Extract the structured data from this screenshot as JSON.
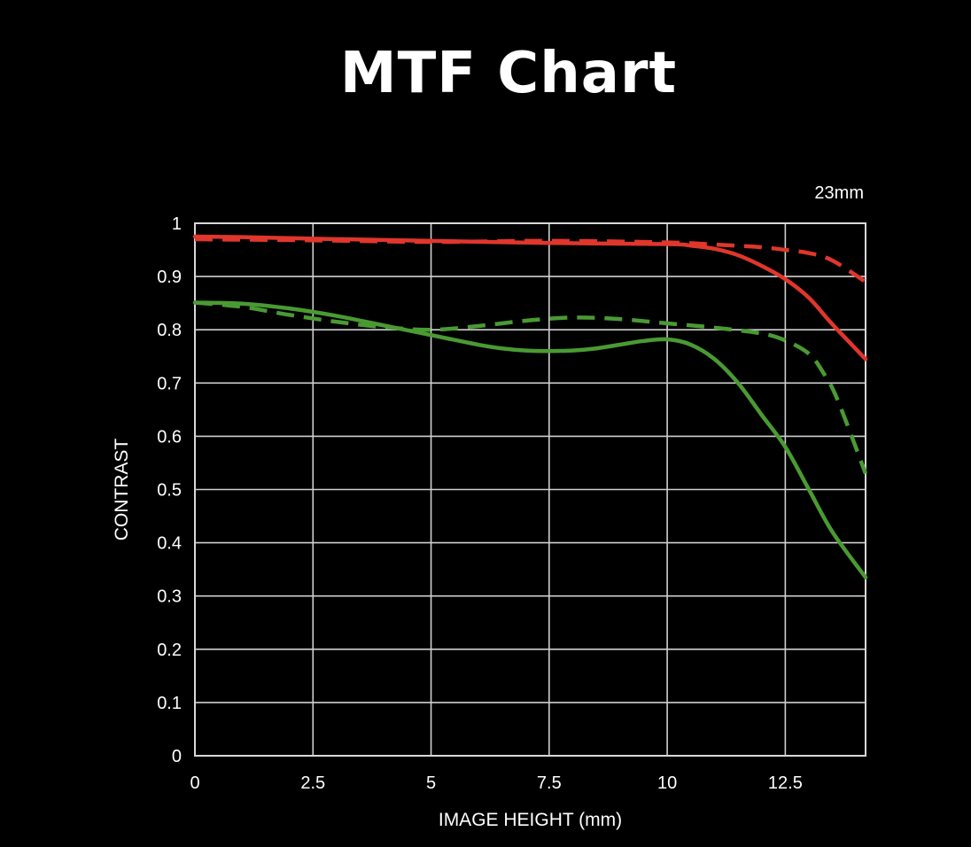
{
  "chart_data": {
    "type": "line",
    "title": "MTF Chart",
    "subtitle": "23mm",
    "xlabel": "IMAGE HEIGHT (mm)",
    "ylabel": "CONTRAST",
    "xlim": [
      0,
      14.2
    ],
    "ylim": [
      0,
      1
    ],
    "x_ticks": [
      0,
      2.5,
      5,
      7.5,
      10,
      12.5
    ],
    "x_tick_labels": [
      "0",
      "2.5",
      "5",
      "7.5",
      "10",
      "12.5"
    ],
    "y_ticks": [
      0,
      0.1,
      0.2,
      0.3,
      0.4,
      0.5,
      0.6,
      0.7,
      0.8,
      0.9,
      1
    ],
    "y_tick_labels": [
      "0",
      "0.1",
      "0.2",
      "0.3",
      "0.4",
      "0.5",
      "0.6",
      "0.7",
      "0.8",
      "0.9",
      "1"
    ],
    "grid": true,
    "series": [
      {
        "color": "#e0362c",
        "style": "solid",
        "points": [
          [
            0,
            0.975
          ],
          [
            1,
            0.974
          ],
          [
            2.5,
            0.971
          ],
          [
            5,
            0.967
          ],
          [
            7.5,
            0.963
          ],
          [
            10,
            0.961
          ],
          [
            10.5,
            0.958
          ],
          [
            11,
            0.952
          ],
          [
            11.5,
            0.94
          ],
          [
            12,
            0.92
          ],
          [
            12.5,
            0.895
          ],
          [
            13,
            0.86
          ],
          [
            13.5,
            0.81
          ],
          [
            14.2,
            0.745
          ]
        ]
      },
      {
        "color": "#e0362c",
        "style": "dashed",
        "points": [
          [
            0,
            0.97
          ],
          [
            2.5,
            0.968
          ],
          [
            5,
            0.965
          ],
          [
            7.5,
            0.967
          ],
          [
            10,
            0.964
          ],
          [
            11,
            0.96
          ],
          [
            12,
            0.955
          ],
          [
            12.5,
            0.95
          ],
          [
            13,
            0.944
          ],
          [
            13.5,
            0.93
          ],
          [
            14.2,
            0.89
          ]
        ]
      },
      {
        "color": "#4a9a33",
        "style": "solid",
        "points": [
          [
            0,
            0.851
          ],
          [
            1,
            0.849
          ],
          [
            2,
            0.84
          ],
          [
            3,
            0.826
          ],
          [
            4,
            0.808
          ],
          [
            5,
            0.79
          ],
          [
            6,
            0.772
          ],
          [
            6.5,
            0.765
          ],
          [
            7,
            0.761
          ],
          [
            7.5,
            0.76
          ],
          [
            8,
            0.761
          ],
          [
            8.5,
            0.765
          ],
          [
            9,
            0.772
          ],
          [
            9.5,
            0.779
          ],
          [
            10,
            0.782
          ],
          [
            10.5,
            0.772
          ],
          [
            11,
            0.745
          ],
          [
            11.5,
            0.7
          ],
          [
            12,
            0.64
          ],
          [
            12.5,
            0.58
          ],
          [
            13,
            0.5
          ],
          [
            13.5,
            0.42
          ],
          [
            14.2,
            0.335
          ]
        ]
      },
      {
        "color": "#4a9a33",
        "style": "dashed",
        "points": [
          [
            0,
            0.851
          ],
          [
            1,
            0.843
          ],
          [
            2,
            0.828
          ],
          [
            3,
            0.815
          ],
          [
            4,
            0.805
          ],
          [
            5,
            0.8
          ],
          [
            6,
            0.807
          ],
          [
            7,
            0.817
          ],
          [
            8,
            0.823
          ],
          [
            9,
            0.82
          ],
          [
            10,
            0.812
          ],
          [
            11,
            0.804
          ],
          [
            12,
            0.793
          ],
          [
            12.5,
            0.78
          ],
          [
            13,
            0.755
          ],
          [
            13.3,
            0.72
          ],
          [
            13.6,
            0.67
          ],
          [
            14.2,
            0.53
          ]
        ]
      }
    ]
  }
}
